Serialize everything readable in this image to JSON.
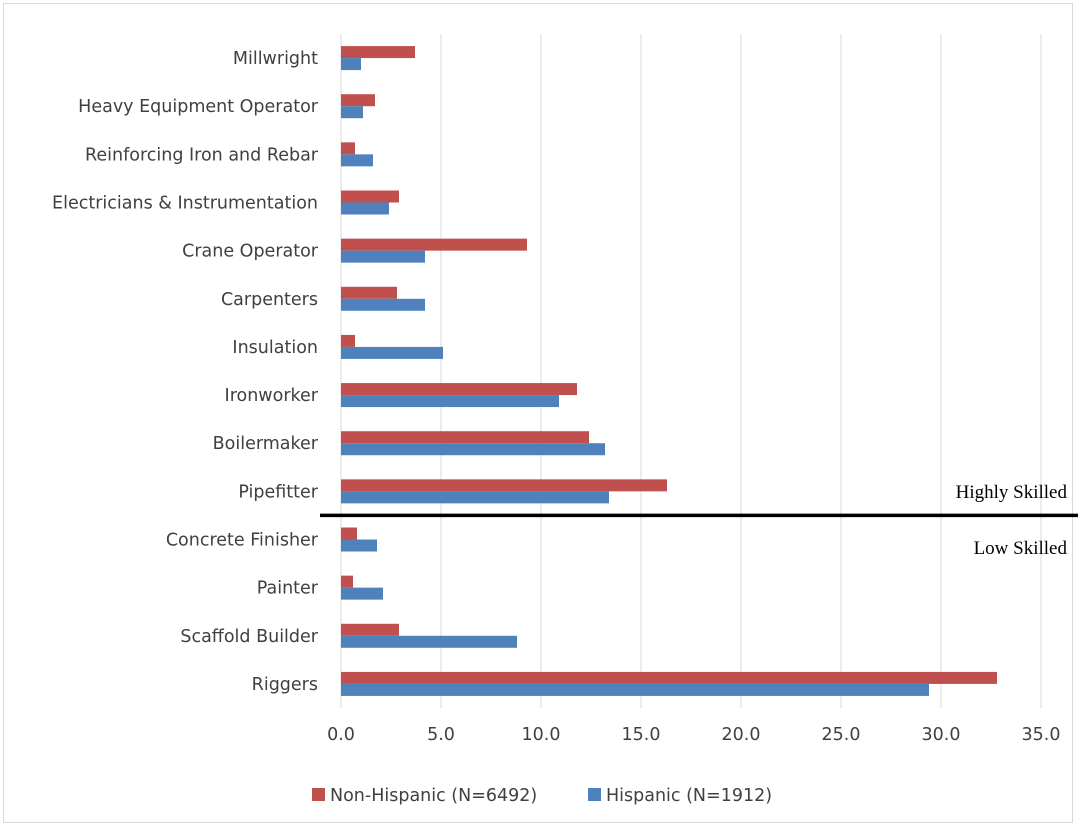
{
  "chart_data": {
    "type": "bar",
    "orientation": "horizontal",
    "categories": [
      "Millwright",
      "Heavy Equipment Operator",
      "Reinforcing Iron and Rebar",
      "Electricians & Instrumentation",
      "Crane Operator",
      "Carpenters",
      "Insulation",
      "Ironworker",
      "Boilermaker",
      "Pipefitter",
      "Concrete Finisher",
      "Painter",
      "Scaffold Builder",
      "Riggers"
    ],
    "series": [
      {
        "name": "Non-Hispanic (N=6492)",
        "color": "#c0504d",
        "values": [
          3.7,
          1.7,
          0.7,
          2.9,
          9.3,
          2.8,
          0.7,
          11.8,
          12.4,
          16.3,
          0.8,
          0.6,
          2.9,
          32.8
        ]
      },
      {
        "name": "Hispanic (N=1912)",
        "color": "#4f81bd",
        "values": [
          1.0,
          1.1,
          1.6,
          2.4,
          4.2,
          4.2,
          5.1,
          10.9,
          13.2,
          13.4,
          1.8,
          2.1,
          8.8,
          29.4
        ]
      }
    ],
    "xlim": [
      0,
      35
    ],
    "xticks": [
      "0.0",
      "5.0",
      "10.0",
      "15.0",
      "20.0",
      "25.0",
      "30.0",
      "35.0"
    ],
    "grid": true,
    "legend_position": "bottom",
    "annotations": {
      "divider_after": "Pipefitter",
      "upper_label": "Highly Skilled",
      "lower_label": "Low Skilled"
    }
  }
}
